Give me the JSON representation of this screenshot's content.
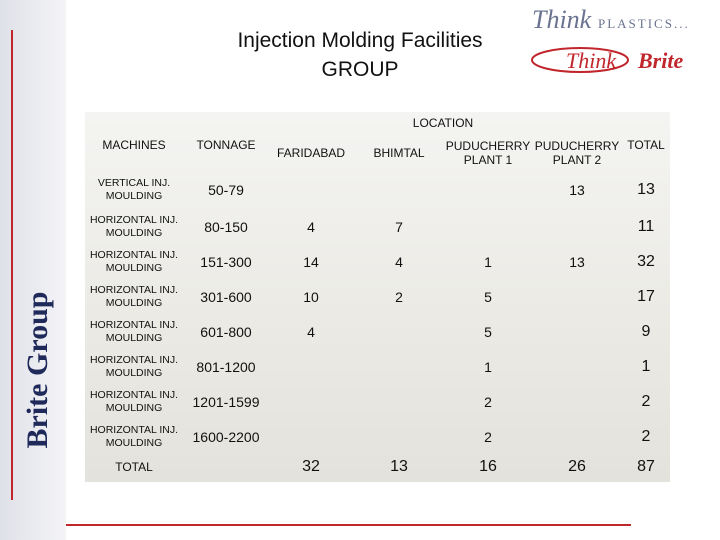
{
  "side_label": "Brite Group",
  "title": [
    "Injection Molding Facilities",
    "GROUP"
  ],
  "logo": {
    "line1": "Think",
    "line1b": "PLASTICS...",
    "line2": "Think",
    "line2b": "Brite"
  },
  "table": {
    "location_header": "LOCATION",
    "headers": [
      "MACHINES",
      "TONNAGE",
      "FARIDABAD",
      "BHIMTAL",
      "PUDUCHERRY PLANT 1",
      "PUDUCHERRY PLANT 2",
      "TOTAL"
    ],
    "rows": [
      [
        "VERTICAL INJ. MOULDING",
        "50-79",
        null,
        null,
        null,
        13,
        13
      ],
      [
        "HORIZONTAL INJ. MOULDING",
        "80-150",
        4,
        7,
        null,
        null,
        11
      ],
      [
        "HORIZONTAL INJ. MOULDING",
        "151-300",
        14,
        4,
        1,
        13,
        32
      ],
      [
        "HORIZONTAL INJ. MOULDING",
        "301-600",
        10,
        2,
        5,
        null,
        17
      ],
      [
        "HORIZONTAL INJ. MOULDING",
        "601-800",
        4,
        null,
        5,
        null,
        9
      ],
      [
        "HORIZONTAL INJ. MOULDING",
        "801-1200",
        null,
        null,
        1,
        null,
        1
      ],
      [
        "HORIZONTAL INJ. MOULDING",
        "1201-1599",
        null,
        null,
        2,
        null,
        2
      ],
      [
        "HORIZONTAL INJ. MOULDING",
        "1600-2200",
        null,
        null,
        2,
        null,
        2
      ]
    ],
    "total_row": [
      "TOTAL",
      null,
      32,
      13,
      16,
      26,
      87
    ]
  }
}
